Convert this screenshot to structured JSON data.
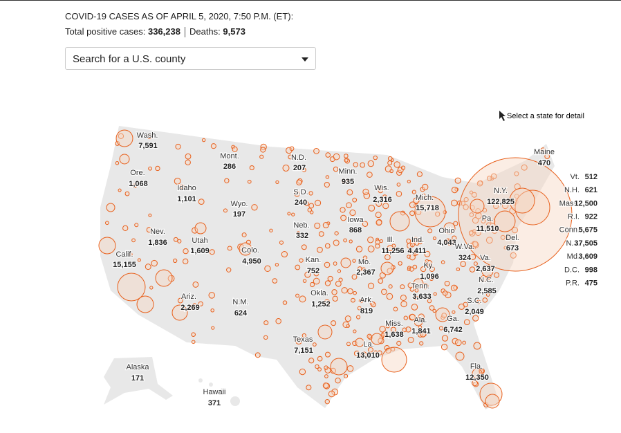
{
  "header": {
    "title": "COVID-19 CASES AS OF APRIL 5, 2020, 7:50 P.M. (ET):",
    "cases_label": "Total positive cases:",
    "cases": "336,238",
    "deaths_label": "Deaths:",
    "deaths": "9,573"
  },
  "search": {
    "placeholder": "Search for a U.S. county"
  },
  "hint": "Select a state for detail",
  "states": [
    {
      "name": "Wash.",
      "cases": "7,591"
    },
    {
      "name": "Ore.",
      "cases": "1,068"
    },
    {
      "name": "Idaho",
      "cases": "1,101"
    },
    {
      "name": "Mont.",
      "cases": "286"
    },
    {
      "name": "N.D.",
      "cases": "207"
    },
    {
      "name": "Minn.",
      "cases": "935"
    },
    {
      "name": "Wyo.",
      "cases": "197"
    },
    {
      "name": "S.D.",
      "cases": "240"
    },
    {
      "name": "Wis.",
      "cases": "2,316"
    },
    {
      "name": "Mich.",
      "cases": "15,718"
    },
    {
      "name": "Nev.",
      "cases": "1,836"
    },
    {
      "name": "Utah",
      "cases": "1,609"
    },
    {
      "name": "Neb.",
      "cases": "332"
    },
    {
      "name": "Iowa",
      "cases": "868"
    },
    {
      "name": "Ill.",
      "cases": "11,256"
    },
    {
      "name": "Ind.",
      "cases": "4,411"
    },
    {
      "name": "Ohio",
      "cases": "4,043"
    },
    {
      "name": "Pa.",
      "cases": "11,510"
    },
    {
      "name": "N.Y.",
      "cases": "122,825"
    },
    {
      "name": "Calif.",
      "cases": "15,155"
    },
    {
      "name": "Colo.",
      "cases": "4,950"
    },
    {
      "name": "Kan.",
      "cases": "752"
    },
    {
      "name": "Mo.",
      "cases": "2,367"
    },
    {
      "name": "Ky.",
      "cases": "1,096"
    },
    {
      "name": "W.Va.",
      "cases": "324"
    },
    {
      "name": "Va.",
      "cases": "2,637"
    },
    {
      "name": "Del.",
      "cases": "673"
    },
    {
      "name": "Tenn.",
      "cases": "3,633"
    },
    {
      "name": "N.C.",
      "cases": "2,585"
    },
    {
      "name": "Ariz.",
      "cases": "2,269"
    },
    {
      "name": "N.M.",
      "cases": "624"
    },
    {
      "name": "Okla.",
      "cases": "1,252"
    },
    {
      "name": "Ark.",
      "cases": "819"
    },
    {
      "name": "S.C.",
      "cases": "2,049"
    },
    {
      "name": "Ga.",
      "cases": "6,742"
    },
    {
      "name": "Ala.",
      "cases": "1,841"
    },
    {
      "name": "Miss.",
      "cases": "1,638"
    },
    {
      "name": "Texas",
      "cases": "7,151"
    },
    {
      "name": "La.",
      "cases": "13,010"
    },
    {
      "name": "Fla.",
      "cases": "12,350"
    },
    {
      "name": "Alaska",
      "cases": "171"
    },
    {
      "name": "Hawaii",
      "cases": "371"
    },
    {
      "name": "Maine",
      "cases": "470"
    }
  ],
  "small_states": [
    {
      "name": "Vt.",
      "cases": "512"
    },
    {
      "name": "N.H.",
      "cases": "621"
    },
    {
      "name": "Mass.",
      "cases": "12,500"
    },
    {
      "name": "R.I.",
      "cases": "922"
    },
    {
      "name": "Conn.",
      "cases": "5,675"
    },
    {
      "name": "N.J.",
      "cases": "37,505"
    },
    {
      "name": "Md.",
      "cases": "3,609"
    },
    {
      "name": "D.C.",
      "cases": "998"
    },
    {
      "name": "P.R.",
      "cases": "475"
    }
  ]
}
